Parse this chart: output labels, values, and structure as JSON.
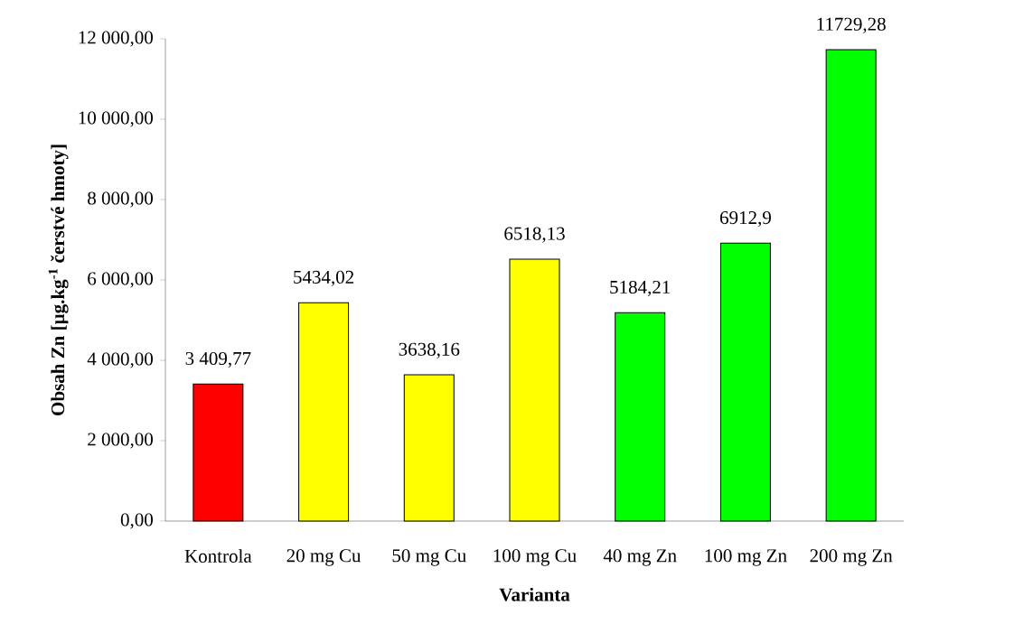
{
  "chart_data": {
    "type": "bar",
    "xlabel": "Varianta",
    "ylabel": "Obsah Zn [µg.kg$^{-1}$ čerstvé hmoty]",
    "categories": [
      "Kontrola",
      "20 mg Cu",
      "50 mg Cu",
      "100 mg Cu",
      "40 mg Zn",
      "100 mg Zn",
      "200 mg Zn"
    ],
    "values": [
      3409.77,
      5434.02,
      3638.16,
      6518.13,
      5184.21,
      6912.9,
      11729.28
    ],
    "value_labels": [
      "3 409,77",
      "5434,02",
      "3638,16",
      "6518,13",
      "5184,21",
      "6912,9",
      "11729,28"
    ],
    "colors": [
      "#ff0000",
      "#ffff00",
      "#ffff00",
      "#ffff00",
      "#00ff00",
      "#00ff00",
      "#00ff00"
    ],
    "ylim": [
      0,
      12000
    ],
    "yticks": [
      {
        "value": 0,
        "label": "0,00"
      },
      {
        "value": 2000,
        "label": "2 000,00"
      },
      {
        "value": 4000,
        "label": "4 000,00"
      },
      {
        "value": 6000,
        "label": "6 000,00"
      },
      {
        "value": 8000,
        "label": "8 000,00"
      },
      {
        "value": 10000,
        "label": "10 000,00"
      },
      {
        "value": 12000,
        "label": "12 000,00"
      }
    ],
    "grid": false
  }
}
